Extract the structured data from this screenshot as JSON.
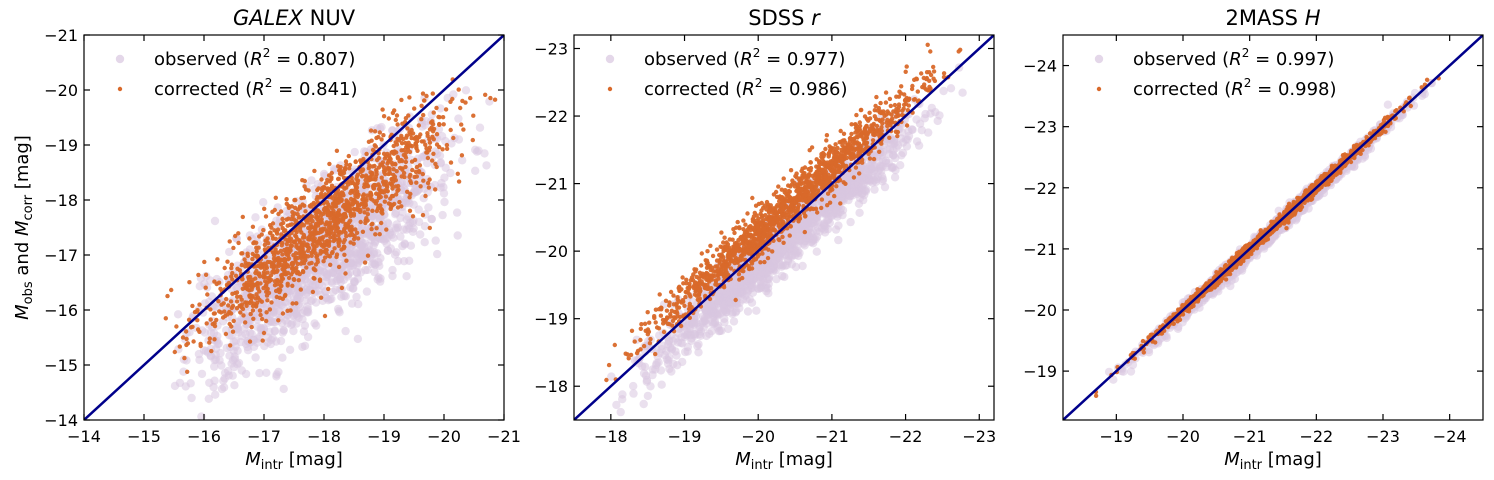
{
  "figure": {
    "ylabel_parts": [
      "M",
      "obs",
      " and ",
      "M",
      "corr",
      " [mag]"
    ],
    "xlabel_parts": [
      "M",
      "intr",
      " [mag]"
    ]
  },
  "colors": {
    "observed": "#d9c6e0",
    "corrected": "#d9692a",
    "line": "#00008b"
  },
  "chart_data": [
    {
      "type": "scatter",
      "title": "NUV",
      "title_italic": "GALEX",
      "xlabel": "M_intr [mag]",
      "ylabel": "M_obs and M_corr [mag]",
      "xlim": [
        -14,
        -21
      ],
      "ylim": [
        -14,
        -21
      ],
      "xticks": [
        -14,
        -15,
        -16,
        -17,
        -18,
        -19,
        -20,
        -21
      ],
      "yticks": [
        -14,
        -15,
        -16,
        -17,
        -18,
        -19,
        -20,
        -21
      ],
      "xticklabels": [
        "−14",
        "−15",
        "−16",
        "−17",
        "−18",
        "−19",
        "−20",
        "−21"
      ],
      "yticklabels": [
        "−14",
        "−15",
        "−16",
        "−17",
        "−18",
        "−19",
        "−20",
        "−21"
      ],
      "legend_position": "upper-left",
      "series": [
        {
          "name": "observed",
          "label_prefix": "observed (",
          "r2_text": " = 0.807)",
          "r2": 0.807,
          "x_range": [
            -15.0,
            -21.0
          ],
          "slope": 0.72,
          "offset": -3.7,
          "scatter": 0.6,
          "n": 1400
        },
        {
          "name": "corrected",
          "label_prefix": "corrected (",
          "r2_text": " = 0.841)",
          "r2": 0.841,
          "x_range": [
            -15.0,
            -21.0
          ],
          "slope": 0.82,
          "offset": -2.9,
          "scatter": 0.45,
          "n": 1400
        }
      ],
      "line": {
        "label": "one-to-one",
        "from": [
          -14,
          -14
        ],
        "to": [
          -21,
          -21
        ]
      }
    },
    {
      "type": "scatter",
      "title": "SDSS r",
      "title_prefix": "SDSS ",
      "title_italic": "r",
      "xlabel": "M_intr [mag]",
      "ylabel": "",
      "xlim": [
        -17.5,
        -23.2
      ],
      "ylim": [
        -17.5,
        -23.2
      ],
      "xticks": [
        -18,
        -19,
        -20,
        -21,
        -22,
        -23
      ],
      "yticks": [
        -18,
        -19,
        -20,
        -21,
        -22,
        -23
      ],
      "xticklabels": [
        "−18",
        "−19",
        "−20",
        "−21",
        "−22",
        "−23"
      ],
      "yticklabels": [
        "−18",
        "−19",
        "−20",
        "−21",
        "−22",
        "−23"
      ],
      "legend_position": "upper-left",
      "series": [
        {
          "name": "observed",
          "label_prefix": "observed (",
          "r2_text": " = 0.977)",
          "r2": 0.977,
          "x_range": [
            -17.8,
            -22.9
          ],
          "slope": 0.97,
          "offset": 0.2,
          "scatter": 0.22,
          "n": 1500
        },
        {
          "name": "corrected",
          "label_prefix": "corrected (",
          "r2_text": " = 0.986)",
          "r2": 0.986,
          "x_range": [
            -17.7,
            -23.0
          ],
          "slope": 0.98,
          "offset": -0.55,
          "scatter": 0.18,
          "n": 1500
        }
      ],
      "line": {
        "label": "one-to-one",
        "from": [
          -17.5,
          -17.5
        ],
        "to": [
          -23.2,
          -23.2
        ]
      }
    },
    {
      "type": "scatter",
      "title": "2MASS H",
      "title_prefix": "2MASS ",
      "title_italic": "H",
      "xlabel": "M_intr [mag]",
      "ylabel": "",
      "xlim": [
        -18.2,
        -24.5
      ],
      "ylim": [
        -18.2,
        -24.5
      ],
      "xticks": [
        -19,
        -20,
        -21,
        -22,
        -23,
        -24
      ],
      "yticks": [
        -19,
        -20,
        -21,
        -22,
        -23,
        -24
      ],
      "xticklabels": [
        "−19",
        "−20",
        "−21",
        "−22",
        "−23",
        "−24"
      ],
      "yticklabels": [
        "−19",
        "−20",
        "−21",
        "−22",
        "−23",
        "−24"
      ],
      "legend_position": "upper-left",
      "series": [
        {
          "name": "observed",
          "label_prefix": "observed (",
          "r2_text": " = 0.997)",
          "r2": 0.997,
          "x_range": [
            -18.6,
            -24.0
          ],
          "slope": 1.0,
          "offset": 0.05,
          "scatter": 0.07,
          "n": 1300
        },
        {
          "name": "corrected",
          "label_prefix": "corrected (",
          "r2_text": " = 0.998)",
          "r2": 0.998,
          "x_range": [
            -18.6,
            -24.0
          ],
          "slope": 1.0,
          "offset": -0.02,
          "scatter": 0.05,
          "n": 1300
        }
      ],
      "line": {
        "label": "one-to-one",
        "from": [
          -18.2,
          -18.2
        ],
        "to": [
          -24.5,
          -24.5
        ]
      }
    }
  ]
}
